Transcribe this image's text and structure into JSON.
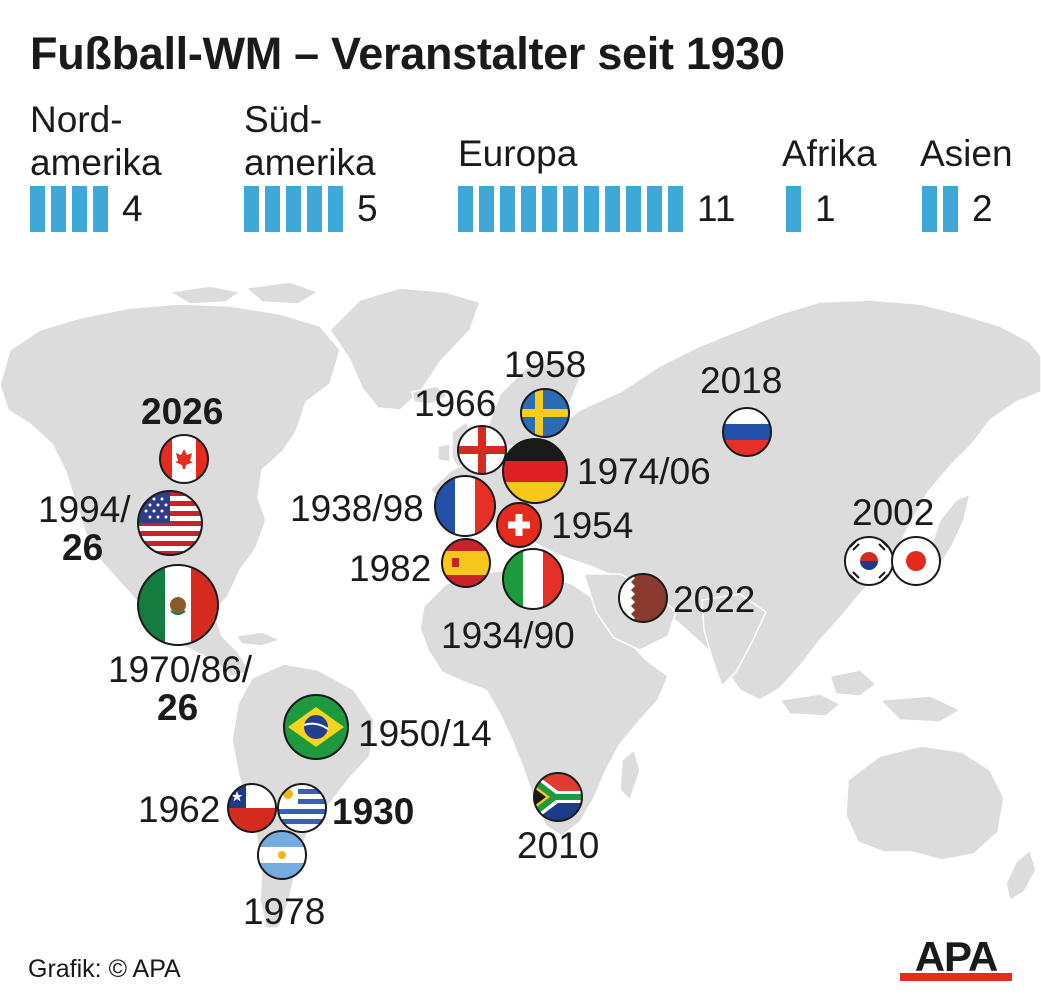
{
  "title": "Fußball-WM – Veranstalter seit 1930",
  "continents": [
    {
      "name": "Nord-\namerika",
      "count": 4
    },
    {
      "name": "Süd-\namerika",
      "count": 5
    },
    {
      "name": "Europa",
      "count": 11
    },
    {
      "name": "Afrika",
      "count": 1
    },
    {
      "name": "Asien",
      "count": 2
    }
  ],
  "colors": {
    "bar": "#3ea8d8",
    "land": "#dcdcdc",
    "text": "#1a1a1a"
  },
  "hosts": [
    {
      "country": "Kanada",
      "flag": "canada-flag-icon",
      "label": "2026",
      "bold": true
    },
    {
      "country": "USA",
      "flag": "usa-flag-icon",
      "label_line1": "1994/",
      "label_line2": "26"
    },
    {
      "country": "Mexiko",
      "flag": "mexico-flag-icon",
      "label_line1": "1970/86/",
      "label_line2": "26"
    },
    {
      "country": "Brasilien",
      "flag": "brazil-flag-icon",
      "label": "1950/14"
    },
    {
      "country": "Chile",
      "flag": "chile-flag-icon",
      "label": "1962"
    },
    {
      "country": "Uruguay",
      "flag": "uruguay-flag-icon",
      "label": "1930",
      "bold": true
    },
    {
      "country": "Argentinien",
      "flag": "argentina-flag-icon",
      "label": "1978"
    },
    {
      "country": "England",
      "flag": "england-flag-icon",
      "label": "1966"
    },
    {
      "country": "Schweden",
      "flag": "sweden-flag-icon",
      "label": "1958"
    },
    {
      "country": "Deutschland",
      "flag": "germany-flag-icon",
      "label": "1974/06"
    },
    {
      "country": "Frankreich",
      "flag": "france-flag-icon",
      "label": "1938/98"
    },
    {
      "country": "Schweiz",
      "flag": "switzerland-flag-icon",
      "label": "1954"
    },
    {
      "country": "Spanien",
      "flag": "spain-flag-icon",
      "label": "1982"
    },
    {
      "country": "Italien",
      "flag": "italy-flag-icon",
      "label": "1934/90"
    },
    {
      "country": "Russland",
      "flag": "russia-flag-icon",
      "label": "2018"
    },
    {
      "country": "Katar",
      "flag": "qatar-flag-icon",
      "label": "2022"
    },
    {
      "country": "Südkorea",
      "flag": "south-korea-flag-icon",
      "label": "2002"
    },
    {
      "country": "Japan",
      "flag": "japan-flag-icon"
    },
    {
      "country": "Südafrika",
      "flag": "south-africa-flag-icon",
      "label": "2010"
    }
  ],
  "credit": "Grafik: © APA",
  "logo_text": "APA"
}
